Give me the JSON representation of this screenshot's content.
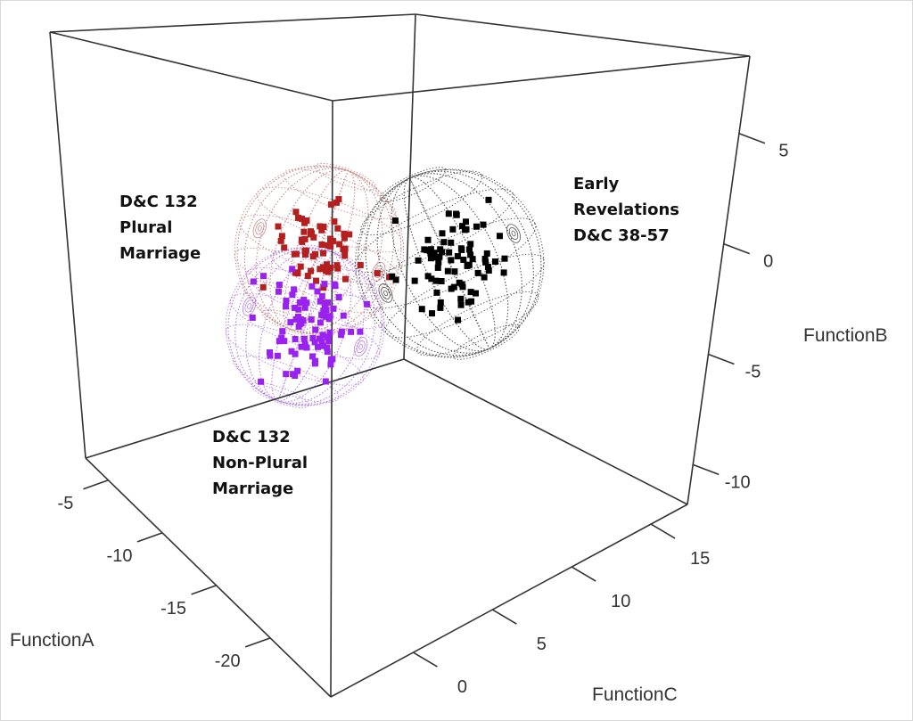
{
  "chart_data": {
    "type": "scatter3d",
    "title": "",
    "grid": false,
    "axes": {
      "A": {
        "label": "FunctionA",
        "range": [
          -25.6,
          -2.9
        ],
        "ticks": [
          -5,
          -10,
          -15,
          -20
        ],
        "tick_labels": [
          "-5",
          "-10",
          "-15",
          "-20"
        ]
      },
      "B": {
        "label": "FunctionB",
        "range": [
          -11.8,
          8.5
        ],
        "ticks": [
          5,
          0,
          -5,
          -10
        ],
        "tick_labels": [
          "5",
          "0",
          "-5",
          "-10"
        ]
      },
      "C": {
        "label": "FunctionC",
        "range": [
          -5.2,
          17.3
        ],
        "ticks": [
          0,
          5,
          10,
          15
        ],
        "tick_labels": [
          "0",
          "5",
          "10",
          "15"
        ]
      }
    },
    "series": [
      {
        "name": "D&C 132 Plural Marriage",
        "label_lines": [
          "D&C 132",
          "Plural",
          "Marriage"
        ],
        "color": "#b3201f",
        "sphere_color": "#c98a8a",
        "center": {
          "A": -12.0,
          "B": -0.6,
          "C": 3.9
        },
        "sphere_radius": 3.8,
        "n_points": 70,
        "spread": 1.1
      },
      {
        "name": "D&C 132 Non-Plural Marriage",
        "label_lines": [
          "D&C 132",
          "Non-Plural",
          "Marriage"
        ],
        "color": "#9a22f0",
        "sphere_color": "#b57ee6",
        "center": {
          "A": -12.4,
          "B": -3.7,
          "C": 2.7
        },
        "sphere_radius": 3.5,
        "n_points": 90,
        "spread": 1.0
      },
      {
        "name": "Early Revelations D&C 38-57",
        "label_lines": [
          "Early",
          "Revelations",
          "D&C 38-57"
        ],
        "color": "#000000",
        "sphere_color": "#555555",
        "center": {
          "A": -16.5,
          "B": -0.9,
          "C": 8.4
        },
        "sphere_radius": 4.2,
        "n_points": 80,
        "spread": 1.2
      }
    ]
  }
}
